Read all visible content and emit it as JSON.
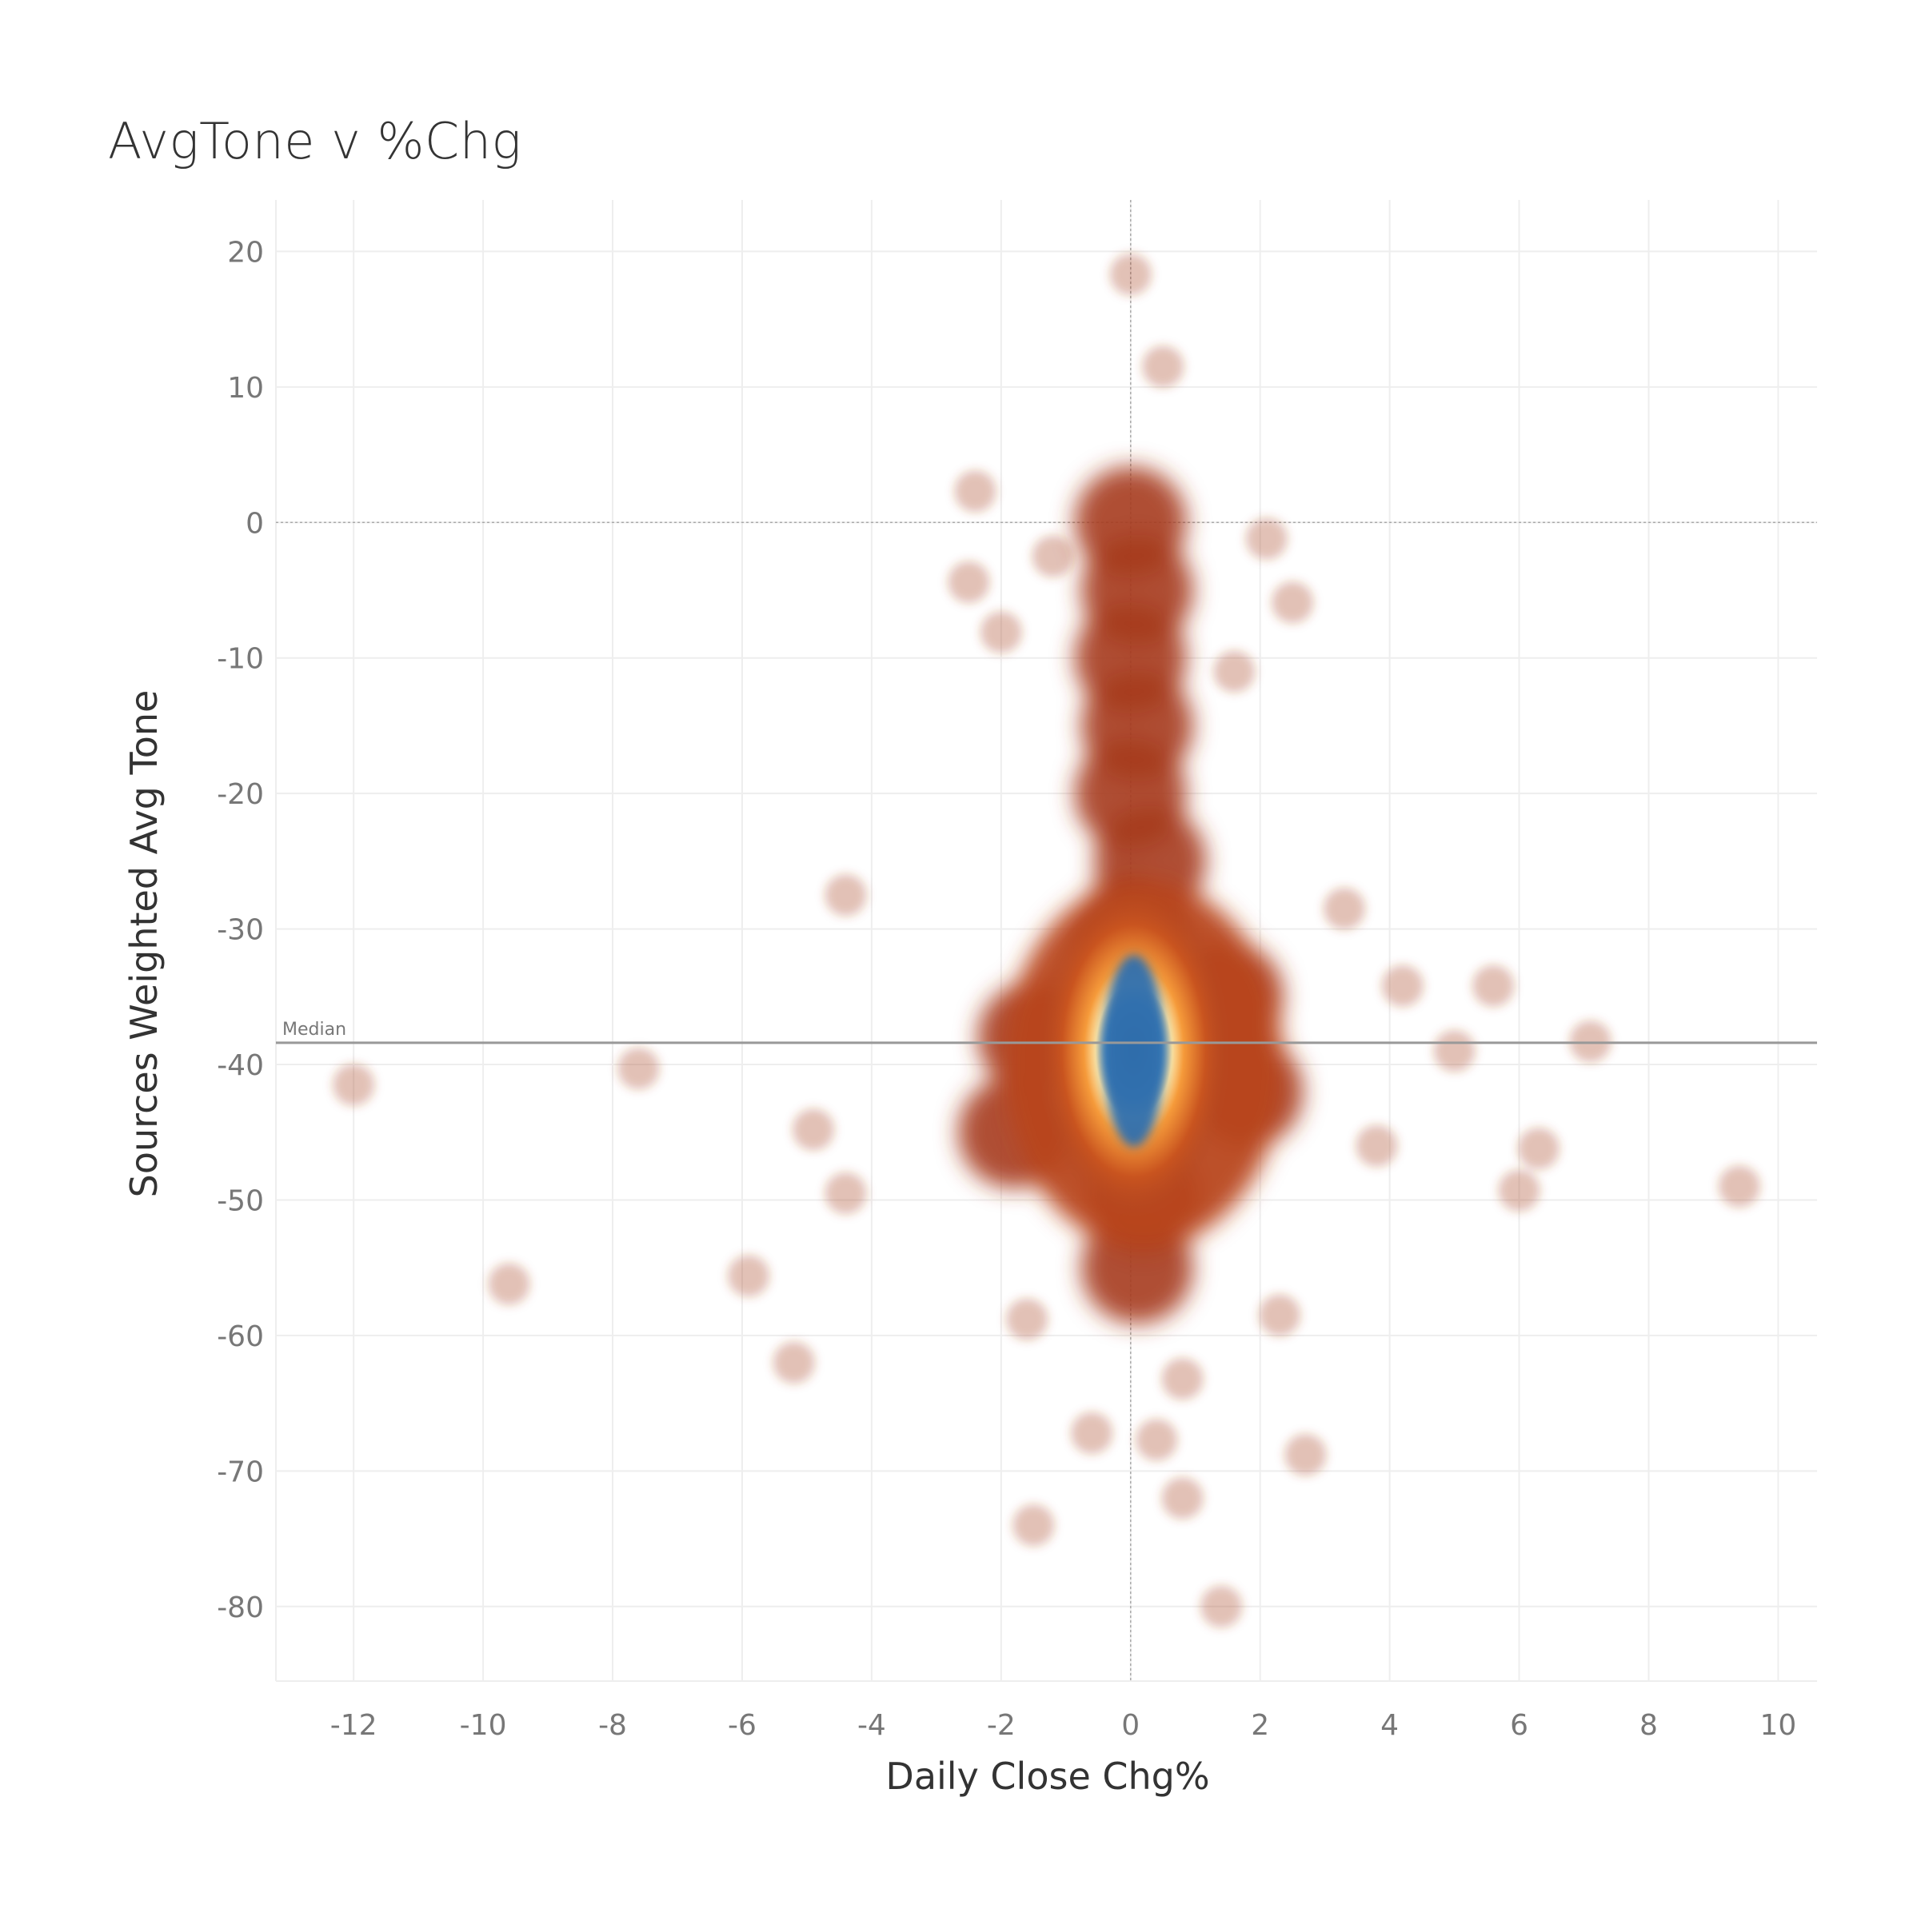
{
  "chart_data": {
    "type": "scatter",
    "title": "AvgTone v %Chg",
    "xlabel": "Daily Close Chg%",
    "ylabel": "Sources Weighted Avg Tone",
    "xlim": [
      -13.2,
      10.6
    ],
    "ylim": [
      -85.5,
      23.8
    ],
    "x_ticks": [
      "-12",
      "-10",
      "-8",
      "-6",
      "-4",
      "-2",
      "0",
      "2",
      "4",
      "6",
      "8",
      "10"
    ],
    "y_ticks": [
      "20",
      "10",
      "0",
      "-10",
      "-20",
      "-30",
      "-40",
      "-50",
      "-60",
      "-70",
      "-80"
    ],
    "grid": true,
    "zero_lines": true,
    "density_rendering": "heatmap",
    "reference_line": {
      "label": "Median",
      "value": -38.4
    },
    "colors": {
      "density_low": "#a63b1c",
      "density_mid": "#f08a2c",
      "density_high": "#2f6fad",
      "grid": "#eeeeee",
      "reference_line": "#999999"
    },
    "outliers": [
      {
        "x": -12.0,
        "y": -41.5
      },
      {
        "x": -9.6,
        "y": -56.2
      },
      {
        "x": -7.6,
        "y": -40.3
      },
      {
        "x": -5.9,
        "y": -55.6
      },
      {
        "x": -5.2,
        "y": -62.0
      },
      {
        "x": -4.9,
        "y": -44.8
      },
      {
        "x": -4.4,
        "y": -27.5
      },
      {
        "x": -4.4,
        "y": -49.5
      },
      {
        "x": -2.4,
        "y": 2.3
      },
      {
        "x": -2.5,
        "y": -4.4
      },
      {
        "x": -2.0,
        "y": -8.1
      },
      {
        "x": -1.5,
        "y": -74.0
      },
      {
        "x": -1.6,
        "y": -58.8
      },
      {
        "x": -0.6,
        "y": -67.2
      },
      {
        "x": 0.0,
        "y": 18.3
      },
      {
        "x": 0.5,
        "y": 11.5
      },
      {
        "x": 0.4,
        "y": -67.7
      },
      {
        "x": 0.8,
        "y": -72.0
      },
      {
        "x": 0.8,
        "y": -63.2
      },
      {
        "x": 1.4,
        "y": -80.0
      },
      {
        "x": 2.5,
        "y": -5.9
      },
      {
        "x": 2.7,
        "y": -68.8
      },
      {
        "x": 2.3,
        "y": -58.5
      },
      {
        "x": 4.2,
        "y": -34.2
      },
      {
        "x": 5.0,
        "y": -39.0
      },
      {
        "x": 5.6,
        "y": -34.2
      },
      {
        "x": 6.0,
        "y": -49.3
      },
      {
        "x": 6.3,
        "y": -46.2
      },
      {
        "x": 7.1,
        "y": -38.3
      },
      {
        "x": 9.4,
        "y": -49.0
      },
      {
        "x": 3.8,
        "y": -46.0
      },
      {
        "x": 3.3,
        "y": -28.5
      },
      {
        "x": 2.1,
        "y": -1.2
      },
      {
        "x": 1.6,
        "y": -11.0
      },
      {
        "x": -1.2,
        "y": -2.5
      }
    ],
    "dense_core": [
      {
        "x": 0.0,
        "y": 0.0
      },
      {
        "x": 0.1,
        "y": -5.0
      },
      {
        "x": 0.0,
        "y": -10.0
      },
      {
        "x": 0.1,
        "y": -15.0
      },
      {
        "x": 0.0,
        "y": -20.0
      },
      {
        "x": 0.3,
        "y": -25.0
      },
      {
        "x": 0.0,
        "y": -30.0
      },
      {
        "x": 0.0,
        "y": -35.0
      },
      {
        "x": 0.0,
        "y": -40.0
      },
      {
        "x": 0.0,
        "y": -45.0
      },
      {
        "x": 0.2,
        "y": -50.0
      },
      {
        "x": 0.1,
        "y": -55.0
      },
      {
        "x": 1.5,
        "y": -35.0
      },
      {
        "x": -1.5,
        "y": -38.0
      },
      {
        "x": 1.8,
        "y": -42.0
      },
      {
        "x": -1.8,
        "y": -45.0
      }
    ]
  }
}
